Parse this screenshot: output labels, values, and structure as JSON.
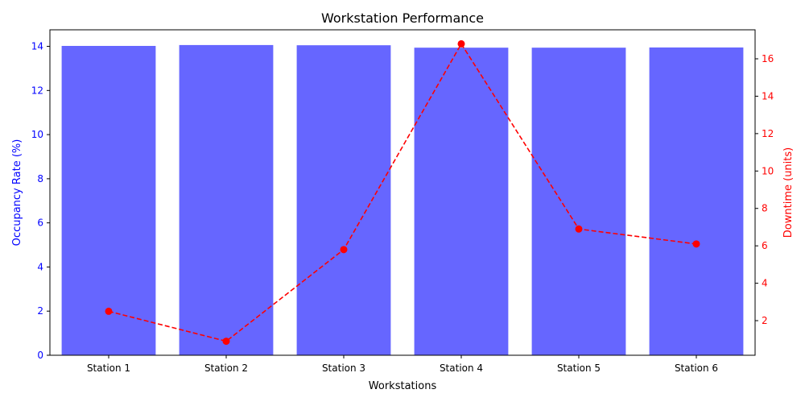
{
  "chart_data": {
    "type": "bar",
    "title": "Workstation Performance",
    "xlabel": "Workstations",
    "categories": [
      "Station 1",
      "Station 2",
      "Station 3",
      "Station 4",
      "Station 5",
      "Station 6"
    ],
    "y_left": {
      "label": "Occupancy Rate (%)",
      "range": [
        0,
        14.75
      ],
      "ticks": [
        0,
        2,
        4,
        6,
        8,
        10,
        12,
        14
      ],
      "color": "#0000ff"
    },
    "y_right": {
      "label": "Downtime (units)",
      "range": [
        0.15,
        17.55
      ],
      "ticks": [
        2,
        4,
        6,
        8,
        10,
        12,
        14,
        16
      ],
      "color": "#ff0000"
    },
    "series": [
      {
        "name": "Occupancy Rate",
        "type": "bar",
        "axis": "left",
        "color": "#6666ff",
        "values": [
          14.02,
          14.06,
          14.05,
          13.94,
          13.94,
          13.95
        ]
      },
      {
        "name": "Downtime",
        "type": "line",
        "axis": "right",
        "color": "#ff0000",
        "line_style": "dashed",
        "marker": "circle",
        "values": [
          2.5,
          0.9,
          5.8,
          16.8,
          6.9,
          6.1
        ]
      }
    ],
    "grid": false,
    "legend": "none"
  }
}
